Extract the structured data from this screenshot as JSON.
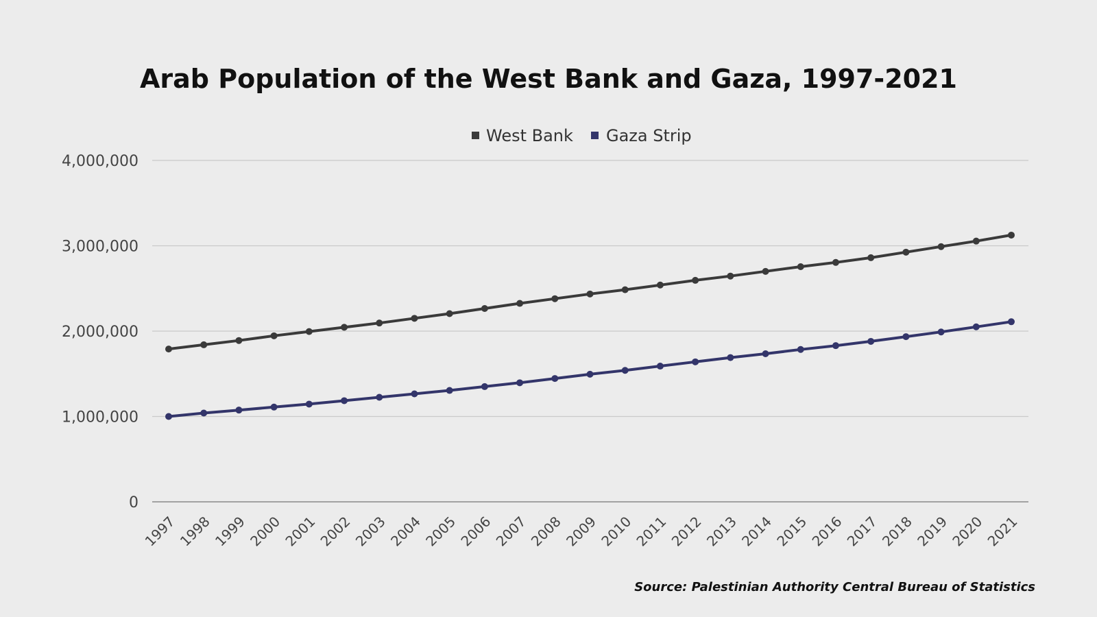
{
  "chart_data": {
    "type": "line",
    "title": "Arab Population of the West Bank and Gaza, 1997-2021",
    "source": "Source: Palestinian Authority Central Bureau of Statistics",
    "x": [
      "1997",
      "1998",
      "1999",
      "2000",
      "2001",
      "2002",
      "2003",
      "2004",
      "2005",
      "2006",
      "2007",
      "2008",
      "2009",
      "2010",
      "2011",
      "2012",
      "2013",
      "2014",
      "2015",
      "2016",
      "2017",
      "2018",
      "2019",
      "2020",
      "2021"
    ],
    "ylim": [
      0,
      4000000
    ],
    "yticks": [
      0,
      1000000,
      2000000,
      3000000,
      4000000
    ],
    "ytick_labels": [
      "0",
      "1,000,000",
      "2,000,000",
      "3,000,000",
      "4,000,000"
    ],
    "grid": true,
    "legend_position": "top-center",
    "series": [
      {
        "name": "West Bank",
        "color": "#3a3a3a",
        "values": [
          1790000,
          1840000,
          1890000,
          1945000,
          1995000,
          2045000,
          2095000,
          2150000,
          2205000,
          2265000,
          2325000,
          2380000,
          2435000,
          2485000,
          2540000,
          2595000,
          2645000,
          2700000,
          2755000,
          2805000,
          2860000,
          2925000,
          2990000,
          3055000,
          3125000
        ]
      },
      {
        "name": "Gaza Strip",
        "color": "#33356a",
        "values": [
          1000000,
          1040000,
          1075000,
          1110000,
          1145000,
          1185000,
          1225000,
          1265000,
          1305000,
          1350000,
          1395000,
          1445000,
          1495000,
          1540000,
          1590000,
          1640000,
          1690000,
          1735000,
          1785000,
          1830000,
          1880000,
          1935000,
          1990000,
          2050000,
          2110000
        ]
      }
    ]
  }
}
